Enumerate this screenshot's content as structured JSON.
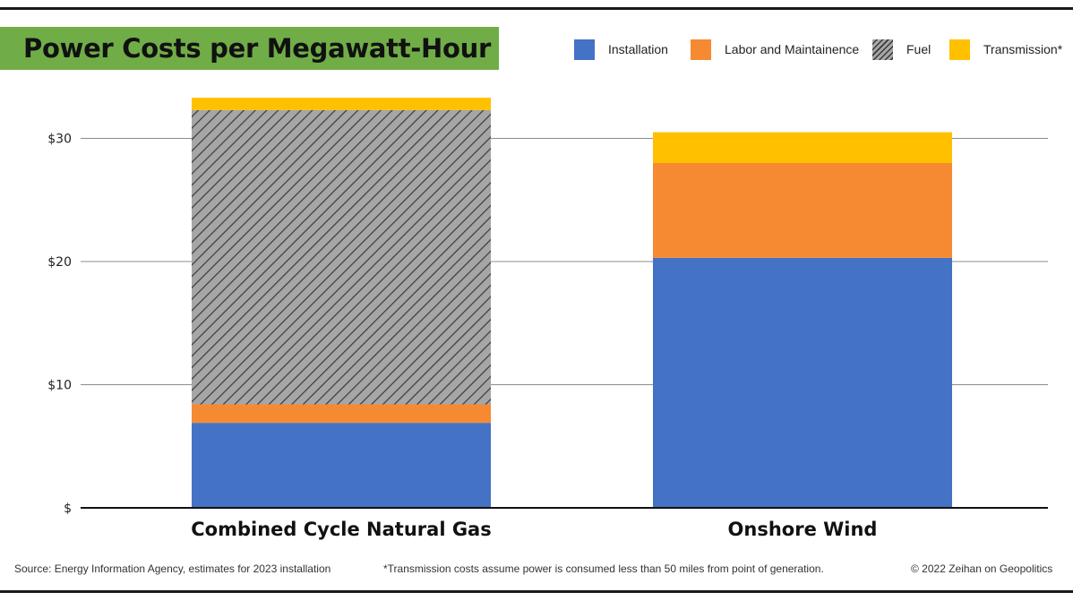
{
  "chart_data": {
    "type": "bar",
    "stacked": true,
    "title": "Power Costs per Megawatt-Hour",
    "categories": [
      "Combined Cycle Natural Gas",
      "Onshore Wind"
    ],
    "series": [
      {
        "name": "Installation",
        "color": "#4472c4",
        "pattern": "solid",
        "values": [
          6.9,
          20.3
        ]
      },
      {
        "name": "Labor and Maintainence",
        "color": "#f58a33",
        "pattern": "solid",
        "values": [
          1.5,
          7.7
        ]
      },
      {
        "name": "Fuel",
        "color": "#a6a6a6",
        "pattern": "diagonal-hatch",
        "values": [
          23.9,
          0
        ]
      },
      {
        "name": "Transmission*",
        "color": "#ffc000",
        "pattern": "solid",
        "values": [
          1.0,
          2.5
        ]
      }
    ],
    "ylim": [
      0,
      33.5
    ],
    "yticks": [
      0,
      10,
      20,
      30
    ],
    "ytick_labels": [
      "$",
      "$10",
      "$20",
      "$30"
    ],
    "grid": true,
    "legend_position": "top-right"
  },
  "footer": {
    "source": "Source: Energy Information Agency, estimates for 2023 installation",
    "note": "*Transmission costs assume power is consumed less than 50 miles from point of generation.",
    "copyright": "© 2022 Zeihan on Geopolitics"
  },
  "colors": {
    "title_background": "#70ad47",
    "gridline": "#8c8c8c",
    "axis": "#111111",
    "hatch_stripe": "#3a3a3a"
  }
}
